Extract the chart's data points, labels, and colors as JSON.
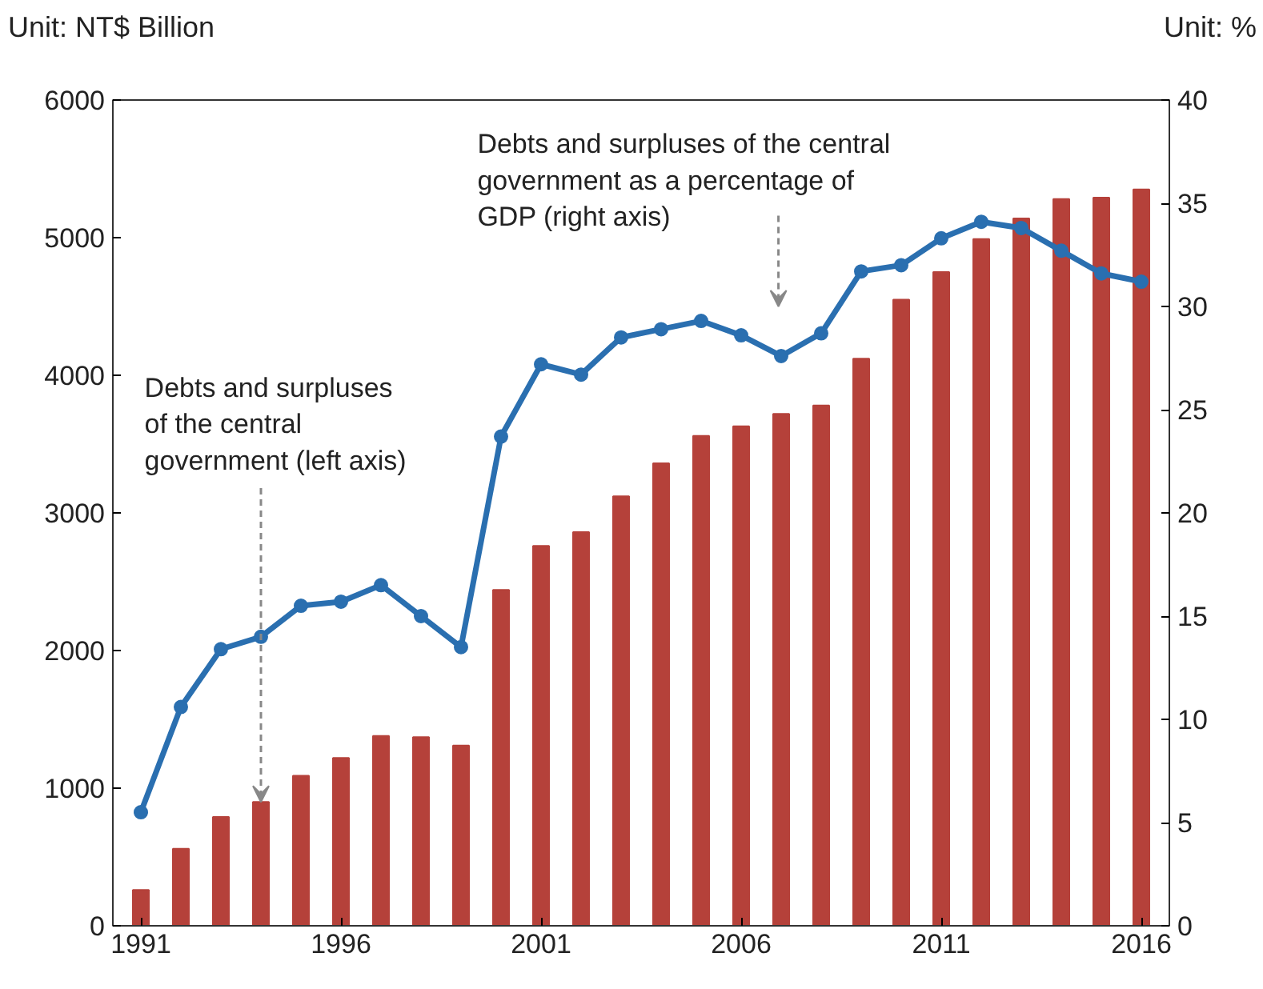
{
  "chart_data": {
    "type": "bar",
    "x": [
      1991,
      1992,
      1993,
      1994,
      1995,
      1996,
      1997,
      1998,
      1999,
      2000,
      2001,
      2002,
      2003,
      2004,
      2005,
      2006,
      2007,
      2008,
      2009,
      2010,
      2011,
      2012,
      2013,
      2014,
      2015,
      2016
    ],
    "series": [
      {
        "color": "#b5413a",
        "values": [
          260,
          560,
          790,
          900,
          1090,
          1220,
          1380,
          1370,
          1310,
          2440,
          2760,
          2860,
          3120,
          3360,
          3560,
          3630,
          3720,
          3780,
          4120,
          4550,
          4750,
          4990,
          5140,
          5280,
          5290,
          5350
        ]
      },
      {
        "type": "line",
        "axis": "y2",
        "color": "#2a6fb0",
        "marker": "circle",
        "values": [
          5.5,
          10.6,
          13.4,
          14.0,
          15.5,
          15.7,
          16.5,
          15.0,
          13.5,
          23.7,
          27.2,
          26.7,
          28.5,
          28.9,
          29.3,
          28.6,
          27.6,
          28.7,
          31.7,
          32.0,
          33.3,
          34.1,
          33.8,
          32.7,
          31.6,
          31.2
        ]
      }
    ],
    "ylabel": "Unit: NT$ Billion",
    "y2label": "Unit: %",
    "xlim": [
      1990.3,
      2016.7
    ],
    "xticks": [
      1991,
      1996,
      2001,
      2006,
      2011,
      2016
    ],
    "ylim": [
      0,
      6000
    ],
    "yticks": [
      0,
      1000,
      2000,
      3000,
      4000,
      5000,
      6000
    ],
    "y2lim": [
      0,
      40
    ],
    "y2ticks": [
      0,
      5,
      10,
      15,
      20,
      25,
      30,
      35,
      40
    ],
    "annotations": [
      {
        "text": "Debts and surpluses\nof the central\ngovernment (left axis)",
        "x": 1994,
        "y": 900
      },
      "Debts and surpluses of the central\ngovernment as a percentage of\nGDP (right axis)"
    ]
  }
}
